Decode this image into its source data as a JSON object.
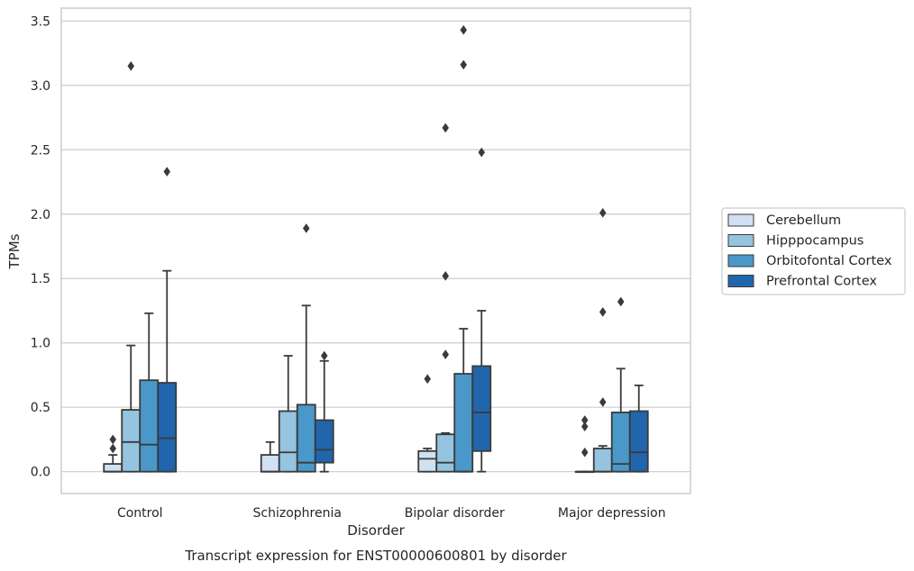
{
  "chart_data": {
    "type": "box",
    "title": "Transcript expression for ENST00000600801 by disorder",
    "xlabel": "Disorder",
    "ylabel": "TPMs",
    "ylim": [
      -0.17,
      3.6
    ],
    "yticks": [
      "0.0",
      "0.5",
      "1.0",
      "1.5",
      "2.0",
      "2.5",
      "3.0",
      "3.5"
    ],
    "grid": true,
    "legend_position": "right",
    "categories": [
      "Control",
      "Schizophrenia",
      "Bipolar disorder",
      "Major depression"
    ],
    "series": [
      {
        "name": "Cerebellum",
        "color": "#d0e1f2",
        "boxes": [
          {
            "q1": 0.0,
            "median": 0.0,
            "q3": 0.06,
            "whislo": 0.0,
            "whishi": 0.13,
            "fliers": [
              0.18,
              0.25
            ]
          },
          {
            "q1": 0.0,
            "median": 0.0,
            "q3": 0.13,
            "whislo": 0.0,
            "whishi": 0.23,
            "fliers": []
          },
          {
            "q1": 0.0,
            "median": 0.1,
            "q3": 0.16,
            "whislo": 0.0,
            "whishi": 0.18,
            "fliers": [
              0.72
            ]
          },
          {
            "q1": 0.0,
            "median": 0.0,
            "q3": 0.0,
            "whislo": 0.0,
            "whishi": 0.0,
            "fliers": [
              0.15,
              0.35,
              0.4
            ]
          }
        ]
      },
      {
        "name": "Hipppocampus",
        "color": "#94c4df",
        "boxes": [
          {
            "q1": 0.0,
            "median": 0.23,
            "q3": 0.48,
            "whislo": 0.0,
            "whishi": 0.98,
            "fliers": [
              3.15
            ]
          },
          {
            "q1": 0.0,
            "median": 0.15,
            "q3": 0.47,
            "whislo": 0.0,
            "whishi": 0.9,
            "fliers": []
          },
          {
            "q1": 0.0,
            "median": 0.07,
            "q3": 0.29,
            "whislo": 0.0,
            "whishi": 0.3,
            "fliers": [
              0.91,
              1.52,
              2.67
            ]
          },
          {
            "q1": 0.0,
            "median": 0.0,
            "q3": 0.18,
            "whislo": 0.0,
            "whishi": 0.2,
            "fliers": [
              0.54,
              1.24,
              2.01
            ]
          }
        ]
      },
      {
        "name": "Orbitofontal Cortex",
        "color": "#4a98c9",
        "boxes": [
          {
            "q1": 0.0,
            "median": 0.21,
            "q3": 0.71,
            "whislo": 0.0,
            "whishi": 1.23,
            "fliers": []
          },
          {
            "q1": 0.0,
            "median": 0.07,
            "q3": 0.52,
            "whislo": 0.0,
            "whishi": 1.29,
            "fliers": [
              1.89
            ]
          },
          {
            "q1": 0.0,
            "median": 0.0,
            "q3": 0.76,
            "whislo": 0.0,
            "whishi": 1.11,
            "fliers": [
              3.16,
              3.43
            ]
          },
          {
            "q1": 0.0,
            "median": 0.06,
            "q3": 0.46,
            "whislo": 0.0,
            "whishi": 0.8,
            "fliers": [
              1.32
            ]
          }
        ]
      },
      {
        "name": "Prefrontal Cortex",
        "color": "#2166ac",
        "boxes": [
          {
            "q1": 0.0,
            "median": 0.26,
            "q3": 0.69,
            "whislo": 0.0,
            "whishi": 1.56,
            "fliers": [
              2.33
            ]
          },
          {
            "q1": 0.07,
            "median": 0.17,
            "q3": 0.4,
            "whislo": 0.0,
            "whishi": 0.86,
            "fliers": [
              0.9
            ]
          },
          {
            "q1": 0.16,
            "median": 0.46,
            "q3": 0.82,
            "whislo": 0.0,
            "whishi": 1.25,
            "fliers": [
              2.48
            ]
          },
          {
            "q1": 0.0,
            "median": 0.15,
            "q3": 0.47,
            "whislo": 0.0,
            "whishi": 0.67,
            "fliers": []
          }
        ]
      }
    ]
  }
}
